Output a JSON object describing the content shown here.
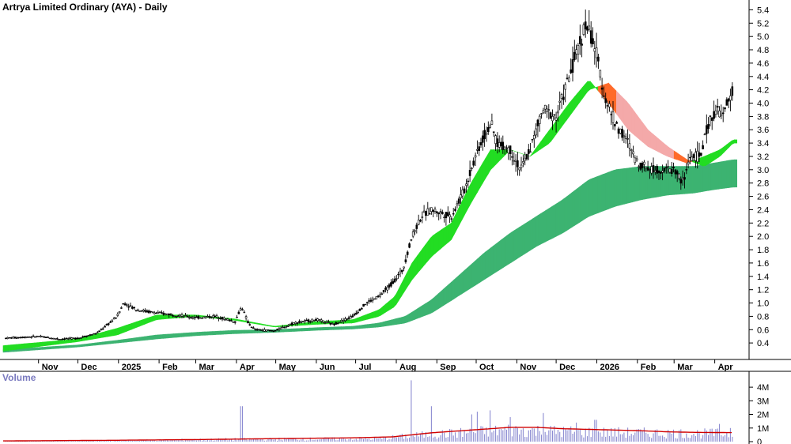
{
  "chart_data": [
    {
      "type": "candlestick",
      "title": "Artrya Limited Ordinary (AYA) - Daily",
      "ylim": [
        0.2,
        5.5
      ],
      "y_ticks": [
        0.4,
        0.6,
        0.8,
        1.0,
        1.2,
        1.4,
        1.6,
        1.8,
        2.0,
        2.2,
        2.4,
        2.6,
        2.8,
        3.0,
        3.2,
        3.4,
        3.6,
        3.8,
        4.0,
        4.2,
        4.4,
        4.6,
        4.8,
        5.0,
        5.2,
        5.4
      ],
      "y_tick_labels": [
        "0.4",
        "0.6",
        "0.8",
        "1.0",
        "1.2",
        "1.4",
        "1.6",
        "1.8",
        "2.0",
        "2.2",
        "2.4",
        "2.6",
        "2.8",
        "3.0",
        "3.2",
        "3.4",
        "3.6",
        "3.8",
        "4.0",
        "4.2",
        "4.4",
        "4.6",
        "4.8",
        "5.0",
        "5.2",
        "5.4"
      ],
      "x_ticks": [
        "Nov",
        "Dec",
        "2025",
        "Feb",
        "Mar",
        "Apr",
        "May",
        "Jun",
        "Jul",
        "Aug",
        "Sep",
        "Oct",
        "Nov",
        "Dec",
        "2026",
        "Feb",
        "Mar",
        "Apr"
      ],
      "x_tick_days": [
        0,
        30,
        61,
        92,
        120,
        151,
        181,
        212,
        242,
        273,
        304,
        334,
        365,
        395,
        426,
        457,
        485,
        516
      ],
      "x_range_days": [
        -27,
        538
      ],
      "price_path": [
        [
          -27,
          0.47
        ],
        [
          0,
          0.5
        ],
        [
          15,
          0.46
        ],
        [
          30,
          0.47
        ],
        [
          45,
          0.55
        ],
        [
          60,
          0.8
        ],
        [
          65,
          1.0
        ],
        [
          75,
          0.9
        ],
        [
          90,
          0.85
        ],
        [
          105,
          0.82
        ],
        [
          120,
          0.78
        ],
        [
          135,
          0.8
        ],
        [
          150,
          0.72
        ],
        [
          155,
          0.95
        ],
        [
          160,
          0.7
        ],
        [
          165,
          0.6
        ],
        [
          180,
          0.58
        ],
        [
          195,
          0.7
        ],
        [
          212,
          0.75
        ],
        [
          225,
          0.68
        ],
        [
          240,
          0.8
        ],
        [
          250,
          1.0
        ],
        [
          260,
          1.1
        ],
        [
          270,
          1.3
        ],
        [
          278,
          1.5
        ],
        [
          285,
          2.0
        ],
        [
          292,
          2.3
        ],
        [
          300,
          2.4
        ],
        [
          315,
          2.3
        ],
        [
          325,
          2.7
        ],
        [
          335,
          3.3
        ],
        [
          345,
          3.7
        ],
        [
          350,
          3.4
        ],
        [
          360,
          3.3
        ],
        [
          368,
          3.0
        ],
        [
          375,
          3.3
        ],
        [
          385,
          3.9
        ],
        [
          395,
          3.8
        ],
        [
          405,
          4.4
        ],
        [
          413,
          4.9
        ],
        [
          418,
          5.2
        ],
        [
          425,
          4.8
        ],
        [
          432,
          4.1
        ],
        [
          440,
          3.7
        ],
        [
          450,
          3.4
        ],
        [
          457,
          3.1
        ],
        [
          470,
          3.0
        ],
        [
          485,
          3.0
        ],
        [
          492,
          2.8
        ],
        [
          497,
          3.2
        ],
        [
          505,
          3.2
        ],
        [
          510,
          3.6
        ],
        [
          516,
          3.9
        ],
        [
          522,
          3.8
        ],
        [
          528,
          4.1
        ],
        [
          530,
          4.2
        ]
      ],
      "bands": [
        {
          "name": "short-term-ma-band",
          "fast": [
            [
              -27,
              0.36
            ],
            [
              30,
              0.46
            ],
            [
              60,
              0.62
            ],
            [
              90,
              0.82
            ],
            [
              120,
              0.82
            ],
            [
              150,
              0.76
            ],
            [
              180,
              0.65
            ],
            [
              212,
              0.72
            ],
            [
              240,
              0.75
            ],
            [
              260,
              0.9
            ],
            [
              272,
              1.1
            ],
            [
              285,
              1.6
            ],
            [
              300,
              2.0
            ],
            [
              315,
              2.2
            ],
            [
              330,
              2.8
            ],
            [
              345,
              3.3
            ],
            [
              360,
              3.3
            ],
            [
              375,
              3.2
            ],
            [
              390,
              3.6
            ],
            [
              405,
              4.0
            ],
            [
              420,
              4.35
            ],
            [
              435,
              4.0
            ],
            [
              450,
              3.6
            ],
            [
              465,
              3.35
            ],
            [
              480,
              3.2
            ],
            [
              495,
              3.1
            ],
            [
              508,
              3.2
            ],
            [
              520,
              3.3
            ],
            [
              530,
              3.45
            ]
          ],
          "slow": [
            [
              -27,
              0.28
            ],
            [
              30,
              0.42
            ],
            [
              60,
              0.52
            ],
            [
              90,
              0.75
            ],
            [
              120,
              0.8
            ],
            [
              150,
              0.74
            ],
            [
              180,
              0.64
            ],
            [
              212,
              0.68
            ],
            [
              240,
              0.7
            ],
            [
              260,
              0.8
            ],
            [
              272,
              0.95
            ],
            [
              285,
              1.35
            ],
            [
              300,
              1.7
            ],
            [
              315,
              1.95
            ],
            [
              330,
              2.5
            ],
            [
              345,
              3.0
            ],
            [
              360,
              3.3
            ],
            [
              375,
              3.2
            ],
            [
              390,
              3.4
            ],
            [
              405,
              3.8
            ],
            [
              420,
              4.2
            ],
            [
              435,
              4.3
            ],
            [
              450,
              4.0
            ],
            [
              465,
              3.6
            ],
            [
              480,
              3.35
            ],
            [
              495,
              3.15
            ],
            [
              508,
              3.05
            ],
            [
              520,
              3.2
            ],
            [
              530,
              3.4
            ]
          ]
        },
        {
          "name": "long-term-ma-band",
          "fast": [
            [
              -27,
              0.3
            ],
            [
              30,
              0.37
            ],
            [
              60,
              0.44
            ],
            [
              90,
              0.52
            ],
            [
              120,
              0.56
            ],
            [
              150,
              0.59
            ],
            [
              180,
              0.6
            ],
            [
              212,
              0.63
            ],
            [
              240,
              0.65
            ],
            [
              260,
              0.7
            ],
            [
              280,
              0.8
            ],
            [
              300,
              1.05
            ],
            [
              320,
              1.4
            ],
            [
              340,
              1.75
            ],
            [
              360,
              2.05
            ],
            [
              380,
              2.3
            ],
            [
              400,
              2.55
            ],
            [
              420,
              2.85
            ],
            [
              440,
              3.0
            ],
            [
              460,
              3.05
            ],
            [
              480,
              3.05
            ],
            [
              500,
              3.05
            ],
            [
              515,
              3.1
            ],
            [
              530,
              3.15
            ]
          ],
          "slow": [
            [
              -27,
              0.26
            ],
            [
              30,
              0.34
            ],
            [
              60,
              0.4
            ],
            [
              90,
              0.46
            ],
            [
              120,
              0.51
            ],
            [
              150,
              0.54
            ],
            [
              180,
              0.56
            ],
            [
              212,
              0.59
            ],
            [
              240,
              0.61
            ],
            [
              260,
              0.64
            ],
            [
              280,
              0.7
            ],
            [
              300,
              0.85
            ],
            [
              320,
              1.1
            ],
            [
              340,
              1.35
            ],
            [
              360,
              1.6
            ],
            [
              380,
              1.85
            ],
            [
              400,
              2.05
            ],
            [
              420,
              2.3
            ],
            [
              440,
              2.45
            ],
            [
              460,
              2.55
            ],
            [
              480,
              2.62
            ],
            [
              500,
              2.65
            ],
            [
              515,
              2.7
            ],
            [
              530,
              2.74
            ]
          ]
        }
      ]
    },
    {
      "type": "bar",
      "title": "Volume",
      "ylim": [
        0,
        4.7
      ],
      "y_ticks": [
        0,
        1,
        2,
        3,
        4
      ],
      "y_tick_labels": [
        "0",
        "1M",
        "2M",
        "3M",
        "4M"
      ],
      "bar_color": "#8c8cd2",
      "ma_color": "#d00000",
      "volume_path": [
        [
          -27,
          0.05
        ],
        [
          60,
          0.1
        ],
        [
          150,
          0.2
        ],
        [
          260,
          0.25
        ],
        [
          285,
          0.5
        ],
        [
          300,
          0.6
        ],
        [
          330,
          0.8
        ],
        [
          360,
          1.0
        ],
        [
          390,
          0.9
        ],
        [
          420,
          0.8
        ],
        [
          460,
          0.75
        ],
        [
          500,
          0.7
        ],
        [
          530,
          0.7
        ]
      ],
      "volume_spikes": [
        [
          155,
          2.6
        ],
        [
          285,
          4.5
        ],
        [
          300,
          2.6
        ],
        [
          330,
          2.0
        ],
        [
          335,
          2.2
        ],
        [
          345,
          2.3
        ],
        [
          360,
          1.8
        ],
        [
          385,
          2.1
        ],
        [
          410,
          1.4
        ],
        [
          425,
          1.6
        ],
        [
          520,
          1.3
        ],
        [
          528,
          1.0
        ]
      ],
      "ma_path": [
        [
          -27,
          0.05
        ],
        [
          60,
          0.1
        ],
        [
          120,
          0.15
        ],
        [
          180,
          0.22
        ],
        [
          240,
          0.28
        ],
        [
          270,
          0.35
        ],
        [
          285,
          0.5
        ],
        [
          300,
          0.65
        ],
        [
          330,
          0.85
        ],
        [
          360,
          1.05
        ],
        [
          380,
          1.05
        ],
        [
          400,
          0.95
        ],
        [
          420,
          0.9
        ],
        [
          440,
          0.85
        ],
        [
          460,
          0.8
        ],
        [
          480,
          0.72
        ],
        [
          500,
          0.68
        ],
        [
          530,
          0.66
        ]
      ]
    }
  ],
  "colors": {
    "candle": "#000000",
    "short_band_up": "#22dd22",
    "short_band_down": "#ff6a2a",
    "short_band_down_light": "#f4a9a9",
    "long_band": "#3cb371",
    "axis": "#000000",
    "grid": "#cccccc"
  }
}
